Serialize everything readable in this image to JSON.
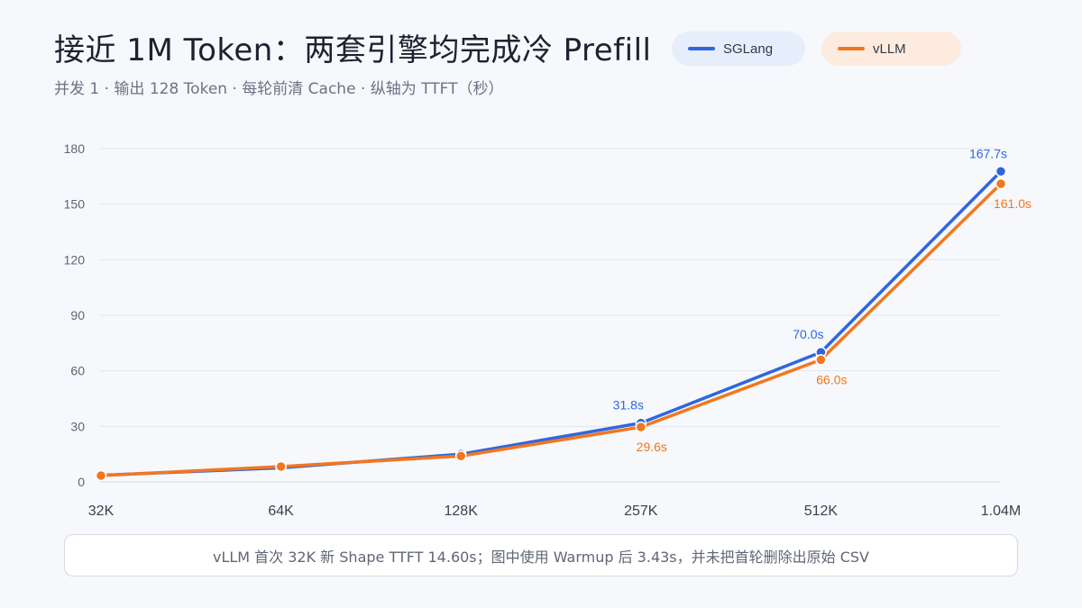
{
  "title": "接近 1M Token：两套引擎均完成冷 Prefill",
  "subtitle": "并发 1 · 输出 128 Token · 每轮前清 Cache · 纵轴为 TTFT（秒）",
  "legend": [
    {
      "name": "SGLang",
      "color": "#2f66e0"
    },
    {
      "name": "vLLM",
      "color": "#f2771f"
    }
  ],
  "note": "vLLM 首次 32K 新 Shape TTFT 14.60s；图中使用 Warmup 后 3.43s，并未把首轮删除出原始 CSV",
  "chart_data": {
    "type": "line",
    "categories": [
      "32K",
      "64K",
      "128K",
      "257K",
      "512K",
      "1.04M"
    ],
    "ylim": [
      0,
      180
    ],
    "yticks": [
      0,
      30,
      60,
      90,
      120,
      150,
      180
    ],
    "grid": true,
    "legend_position": "top-right",
    "series": [
      {
        "name": "SGLang",
        "color": "#2f66e0",
        "values": [
          3.6,
          7.6,
          15.0,
          31.8,
          70.0,
          167.7
        ],
        "labels": [
          "",
          "",
          "",
          "31.8s",
          "70.0s",
          "167.7s"
        ]
      },
      {
        "name": "vLLM",
        "color": "#f2771f",
        "values": [
          3.43,
          8.3,
          14.0,
          29.6,
          66.0,
          161.0
        ],
        "labels": [
          "",
          "",
          "",
          "29.6s",
          "66.0s",
          "161.0s"
        ]
      }
    ]
  }
}
